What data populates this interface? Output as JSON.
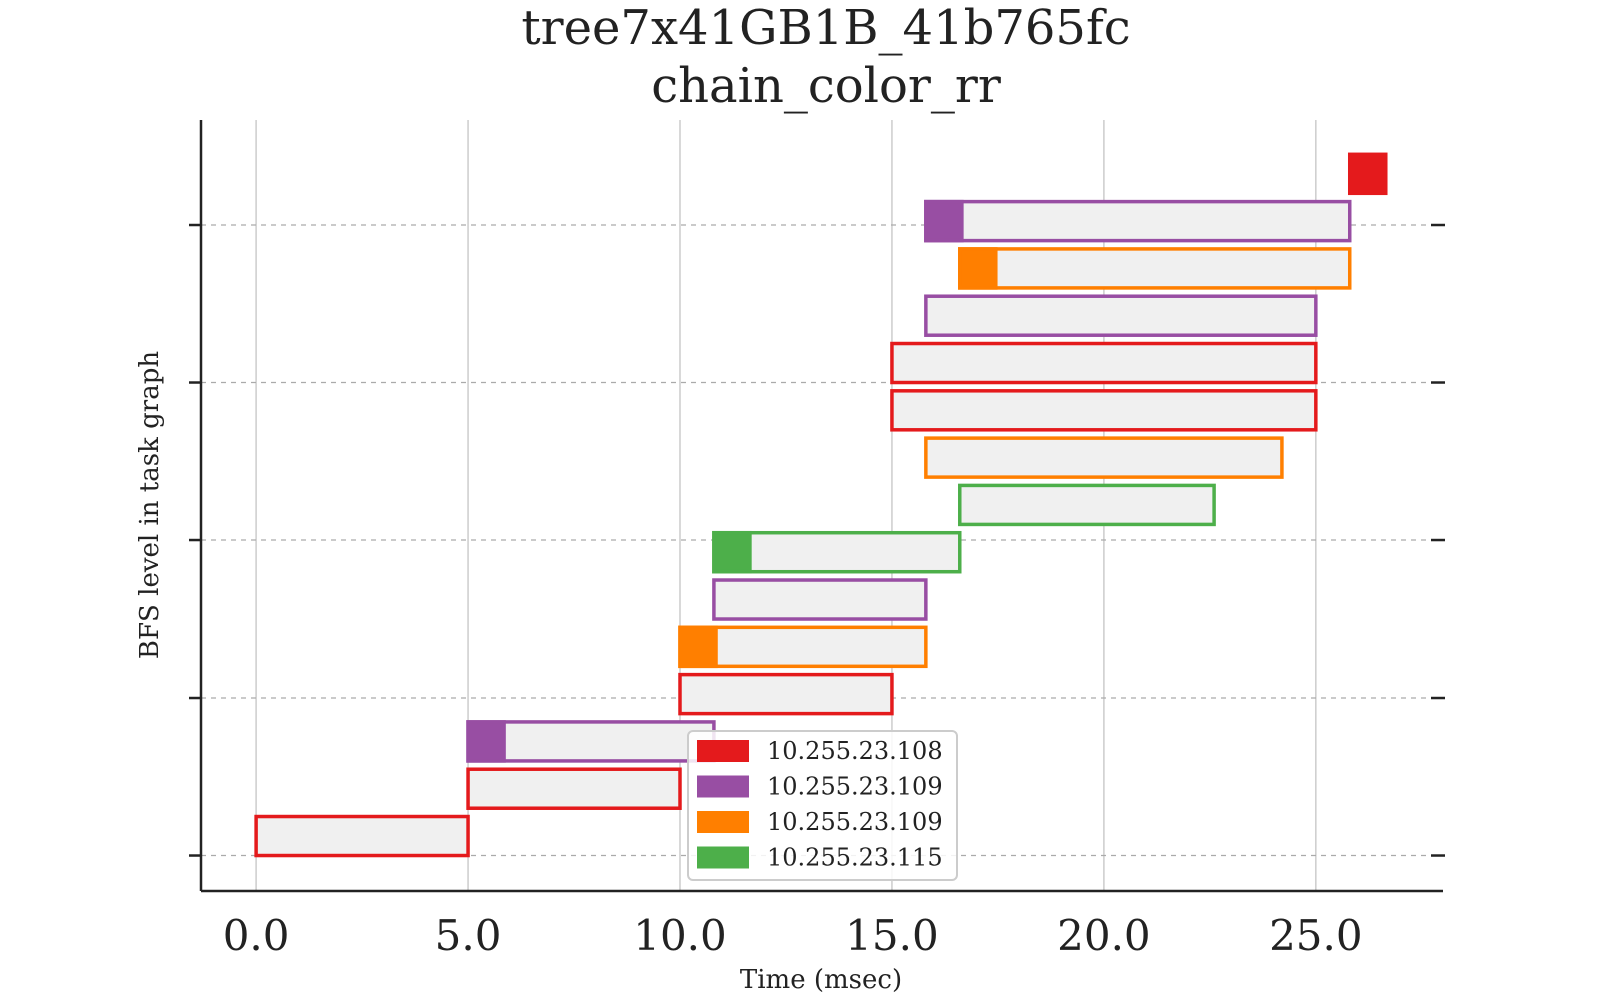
{
  "chart_data": {
    "type": "gantt",
    "title": "tree7x41GB1B_41b765fc",
    "subtitle": "chain_color_rr",
    "xlabel": "Time (msec)",
    "ylabel": "BFS level in task graph",
    "xlim": [
      -1.3,
      28.0
    ],
    "ylim": [
      -0.75,
      15.55
    ],
    "x_ticks": [
      "0.0",
      "5.0",
      "10.0",
      "15.0",
      "20.0",
      "25.0"
    ],
    "x_tick_values": [
      0,
      5,
      10,
      15,
      20,
      25
    ],
    "y_tick_values": [
      0,
      3.33,
      6.67,
      10,
      13.33
    ],
    "grid": {
      "x": true,
      "y": "dashed"
    },
    "legend_position": "bottom-center",
    "bar_fill": "#f0f0f0",
    "series": [
      {
        "name": "10.255.23.108",
        "color": "#e41a1c"
      },
      {
        "name": "10.255.23.109",
        "color": "#984ea3"
      },
      {
        "name": "10.255.23.109",
        "color": "#ff7f00"
      },
      {
        "name": "10.255.23.115",
        "color": "#4daf4a"
      }
    ],
    "tasks": [
      {
        "row": 0,
        "start": 0.0,
        "end": 5.0,
        "series": 0,
        "head": 0.0
      },
      {
        "row": 1,
        "start": 5.0,
        "end": 10.0,
        "series": 0,
        "head": 0.0
      },
      {
        "row": 2,
        "start": 5.0,
        "end": 10.8,
        "series": 1,
        "head": 0.85
      },
      {
        "row": 3,
        "start": 10.0,
        "end": 15.0,
        "series": 0,
        "head": 0.0
      },
      {
        "row": 4,
        "start": 10.0,
        "end": 15.8,
        "series": 2,
        "head": 0.85
      },
      {
        "row": 5,
        "start": 10.8,
        "end": 15.8,
        "series": 1,
        "head": 0.0
      },
      {
        "row": 6,
        "start": 10.8,
        "end": 16.6,
        "series": 3,
        "head": 0.85
      },
      {
        "row": 7,
        "start": 16.6,
        "end": 22.6,
        "series": 3,
        "head": 0.0
      },
      {
        "row": 8,
        "start": 15.8,
        "end": 24.2,
        "series": 2,
        "head": 0.0
      },
      {
        "row": 9,
        "start": 15.0,
        "end": 25.0,
        "series": 0,
        "head": 0.0
      },
      {
        "row": 10,
        "start": 15.0,
        "end": 25.0,
        "series": 0,
        "head": 0.0
      },
      {
        "row": 11,
        "start": 15.8,
        "end": 25.0,
        "series": 1,
        "head": 0.0
      },
      {
        "row": 12,
        "start": 16.6,
        "end": 25.8,
        "series": 2,
        "head": 0.85
      },
      {
        "row": 13,
        "start": 15.8,
        "end": 25.8,
        "series": 1,
        "head": 0.85
      },
      {
        "row": 14,
        "start": 25.8,
        "end": 26.6,
        "series": 0,
        "head": 0.85
      }
    ]
  }
}
